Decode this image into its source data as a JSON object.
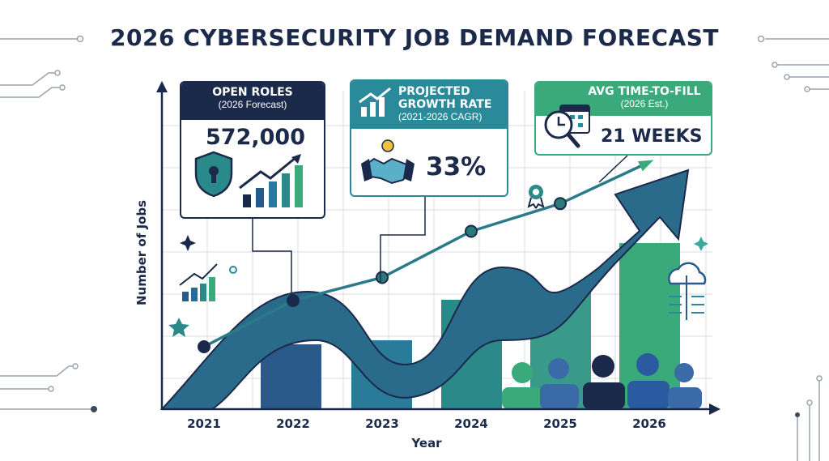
{
  "title": "2026 CYBERSECURITY JOB DEMAND FORECAST",
  "colors": {
    "navy": "#1b2a4a",
    "teal": "#2a8a9a",
    "green": "#3aaa7a",
    "grid": "#d9dde3"
  },
  "cards": {
    "open_roles": {
      "heading": "OPEN ROLES",
      "subheading": "(2026 Forecast)",
      "value": "572,000"
    },
    "growth": {
      "heading_line1": "PROJECTED",
      "heading_line2": "GROWTH RATE",
      "subheading": "(2021-2026 CAGR)",
      "value": "33%"
    },
    "time_to_fill": {
      "heading": "AVG TIME-TO-FILL",
      "subheading": "(2026 Est.)",
      "value": "21 WEEKS"
    }
  },
  "chart_data": {
    "type": "line",
    "title": "2026 CYBERSECURITY JOB DEMAND FORECAST",
    "xlabel": "Year",
    "ylabel": "Number of Jobs",
    "categories": [
      "2021",
      "2022",
      "2023",
      "2024",
      "2025",
      "2026"
    ],
    "series": [
      {
        "values": [
          1.0,
          2.0,
          2.5,
          3.5,
          4.1,
          5.0
        ]
      }
    ],
    "grid": true,
    "legend": "none"
  }
}
